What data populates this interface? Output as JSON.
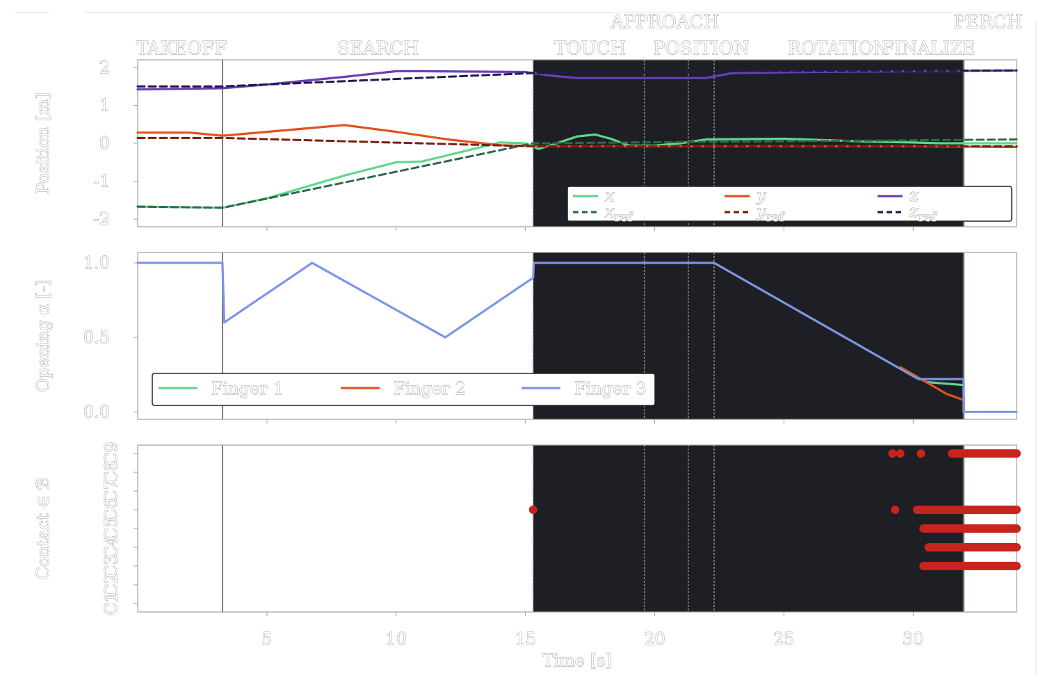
{
  "chart_data": {
    "type": "line",
    "xlabel": "Time [s]",
    "xlim": [
      0,
      34
    ],
    "xticks": [
      5,
      10,
      15,
      20,
      25,
      30
    ],
    "phases": [
      {
        "label": "TAKEOFF",
        "x": 1.7
      },
      {
        "label": "SEARCH",
        "x": 9.3
      },
      {
        "label": "TOUCH",
        "x": 17.5
      },
      {
        "label": "POSITION",
        "x": 21.8
      },
      {
        "label": "ROTATION",
        "x": 27.1
      },
      {
        "label": "FINALIZE",
        "x": 30.6
      },
      {
        "label": "APPROACH",
        "x": 20.4,
        "upper": true
      },
      {
        "label": "PERCH",
        "x": 32.9,
        "upper": true
      }
    ],
    "phase_boundaries": [
      3.28,
      15.3,
      19.6,
      21.3,
      22.3,
      31.95
    ],
    "dark_region": [
      15.3,
      31.95
    ],
    "panels": [
      {
        "ylabel": "Position [m]",
        "ylim": [
          -2.2,
          2.2
        ],
        "yticks": [
          2,
          1,
          0,
          -1,
          -2
        ],
        "ytick_labels": [
          "2",
          "1",
          "0",
          "-1",
          "-2"
        ],
        "legend": [
          {
            "label": "x",
            "style": "solid",
            "color": "#5fd88a"
          },
          {
            "label": "y",
            "style": "solid",
            "color": "#e2521d"
          },
          {
            "label": "z",
            "style": "solid",
            "color": "#6a3fb7"
          },
          {
            "label": "x",
            "sub": "ref",
            "style": "dashed",
            "color": "#2e6a48"
          },
          {
            "label": "y",
            "sub": "ref",
            "style": "dashed",
            "color": "#7a1e12"
          },
          {
            "label": "z",
            "sub": "ref",
            "style": "dashed",
            "color": "#1f1a4e"
          }
        ],
        "series": [
          {
            "name": "x",
            "color": "#5fd88a",
            "style": "solid",
            "x": [
              0,
              3.3,
              5,
              8,
              10,
              11,
              13,
              14,
              15,
              15.5,
              16,
              17,
              17.7,
              18.3,
              19,
              20,
              21,
              22,
              25,
              28,
              30,
              31,
              32,
              34
            ],
            "y": [
              -1.67,
              -1.7,
              -1.45,
              -0.85,
              -0.5,
              -0.48,
              -0.15,
              0.02,
              0.0,
              -0.15,
              -0.05,
              0.18,
              0.23,
              0.12,
              -0.06,
              -0.06,
              0.0,
              0.1,
              0.12,
              0.05,
              0.02,
              0.0,
              0.0,
              0.0
            ]
          },
          {
            "name": "y",
            "color": "#e2521d",
            "style": "solid",
            "x": [
              0,
              2,
              3.3,
              5,
              8,
              10,
              12,
              14,
              15.3,
              17,
              20,
              25,
              30,
              34
            ],
            "y": [
              0.28,
              0.28,
              0.2,
              0.3,
              0.48,
              0.3,
              0.1,
              -0.05,
              -0.08,
              -0.08,
              -0.08,
              -0.08,
              -0.08,
              -0.1
            ]
          },
          {
            "name": "z",
            "color": "#6a3fb7",
            "style": "solid",
            "x": [
              0,
              3.3,
              5,
              8,
              10,
              11,
              15,
              16,
              17,
              20,
              22,
              23,
              26,
              30,
              34
            ],
            "y": [
              1.42,
              1.45,
              1.55,
              1.75,
              1.9,
              1.9,
              1.88,
              1.78,
              1.72,
              1.72,
              1.72,
              1.85,
              1.88,
              1.9,
              1.92
            ]
          },
          {
            "name": "x_ref",
            "color": "#2e6a48",
            "style": "dashed",
            "x": [
              0,
              3.3,
              15.3,
              34
            ],
            "y": [
              -1.67,
              -1.7,
              0.0,
              0.1
            ]
          },
          {
            "name": "y_ref",
            "color": "#7a1e12",
            "style": "dashed",
            "x": [
              0,
              3.3,
              15.3,
              34
            ],
            "y": [
              0.14,
              0.14,
              -0.08,
              -0.08
            ]
          },
          {
            "name": "z_ref",
            "color": "#1f1a4e",
            "style": "dashed",
            "x": [
              0,
              3.3,
              15.3,
              22,
              34
            ],
            "y": [
              1.5,
              1.5,
              1.85,
              1.9,
              1.92
            ]
          }
        ]
      },
      {
        "ylabel": "Opening α [-]",
        "ylim": [
          -0.05,
          1.07
        ],
        "yticks": [
          1.0,
          0.5,
          0.0
        ],
        "ytick_labels": [
          "1.0",
          "0.5",
          "0.0"
        ],
        "legend": [
          {
            "label": "Finger 1",
            "style": "solid",
            "color": "#5fd88a"
          },
          {
            "label": "Finger 2",
            "style": "solid",
            "color": "#e2521d"
          },
          {
            "label": "Finger 3",
            "style": "solid",
            "color": "#7e95e6"
          }
        ],
        "series": [
          {
            "name": "Finger 1",
            "color": "#5fd88a",
            "style": "solid",
            "x": [
              29.5,
              30.5,
              31.95,
              31.95
            ],
            "y": [
              0.3,
              0.2,
              0.18,
              0.0
            ]
          },
          {
            "name": "Finger 2",
            "color": "#e2521d",
            "style": "solid",
            "x": [
              29.5,
              30.5,
              31.3,
              31.95,
              31.95
            ],
            "y": [
              0.3,
              0.2,
              0.12,
              0.08,
              0.0
            ]
          },
          {
            "name": "Finger 3",
            "color": "#7e95e6",
            "style": "solid",
            "x": [
              0,
              3.28,
              3.35,
              6.75,
              11.9,
              15.3,
              15.32,
              22.3,
              30.2,
              31.95,
              31.97,
              34
            ],
            "y": [
              1.0,
              1.0,
              0.6,
              1.0,
              0.5,
              0.9,
              1.0,
              1.0,
              0.22,
              0.22,
              0.0,
              0.0
            ]
          }
        ]
      },
      {
        "ylabel": "Contact ∈ ℬ",
        "ylim": [
          0.55,
          9.45
        ],
        "yticks": [
          1,
          2,
          3,
          4,
          5,
          6,
          7,
          8,
          9
        ],
        "ytick_labels": [
          "C1",
          "C2",
          "C3",
          "C4",
          "C5",
          "C6",
          "C7",
          "C8",
          "C9"
        ],
        "contact_color": "#c8231c",
        "contact_segments": [
          {
            "y": 9,
            "x0": 31.5,
            "x1": 34
          },
          {
            "y": 6,
            "x0": 30.15,
            "x1": 34
          },
          {
            "y": 5,
            "x0": 30.4,
            "x1": 34
          },
          {
            "y": 4,
            "x0": 30.6,
            "x1": 34
          },
          {
            "y": 3,
            "x0": 30.4,
            "x1": 34
          }
        ],
        "contact_points": [
          {
            "x": 15.3,
            "y": 6
          },
          {
            "x": 29.3,
            "y": 6
          },
          {
            "x": 29.2,
            "y": 9
          },
          {
            "x": 29.5,
            "y": 9
          },
          {
            "x": 30.3,
            "y": 9
          }
        ]
      }
    ]
  }
}
